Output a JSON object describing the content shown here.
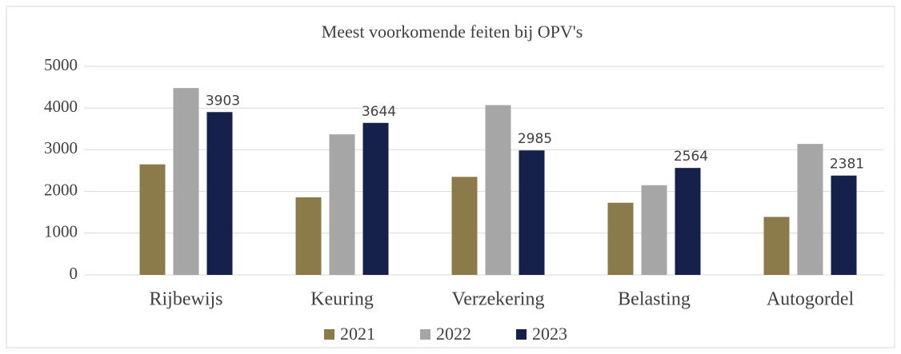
{
  "chart_data": {
    "type": "bar",
    "title": "Meest voorkomende feiten bij OPV's",
    "categories": [
      "Rijbewijs",
      "Keuring",
      "Verzekering",
      "Belasting",
      "Autogordel"
    ],
    "series": [
      {
        "name": "2021",
        "color": "#8b7a4a",
        "values": [
          2650,
          1860,
          2350,
          1730,
          1390
        ]
      },
      {
        "name": "2022",
        "color": "#a6a6a6",
        "values": [
          4480,
          3370,
          4070,
          2150,
          3140
        ]
      },
      {
        "name": "2023",
        "color": "#15214a",
        "values": [
          3903,
          3644,
          2985,
          2564,
          2381
        ],
        "data_labels": true
      }
    ],
    "ylim": [
      0,
      5000
    ],
    "yticks": [
      0,
      1000,
      2000,
      3000,
      4000,
      5000
    ],
    "grid": true,
    "legend": "bottom"
  }
}
